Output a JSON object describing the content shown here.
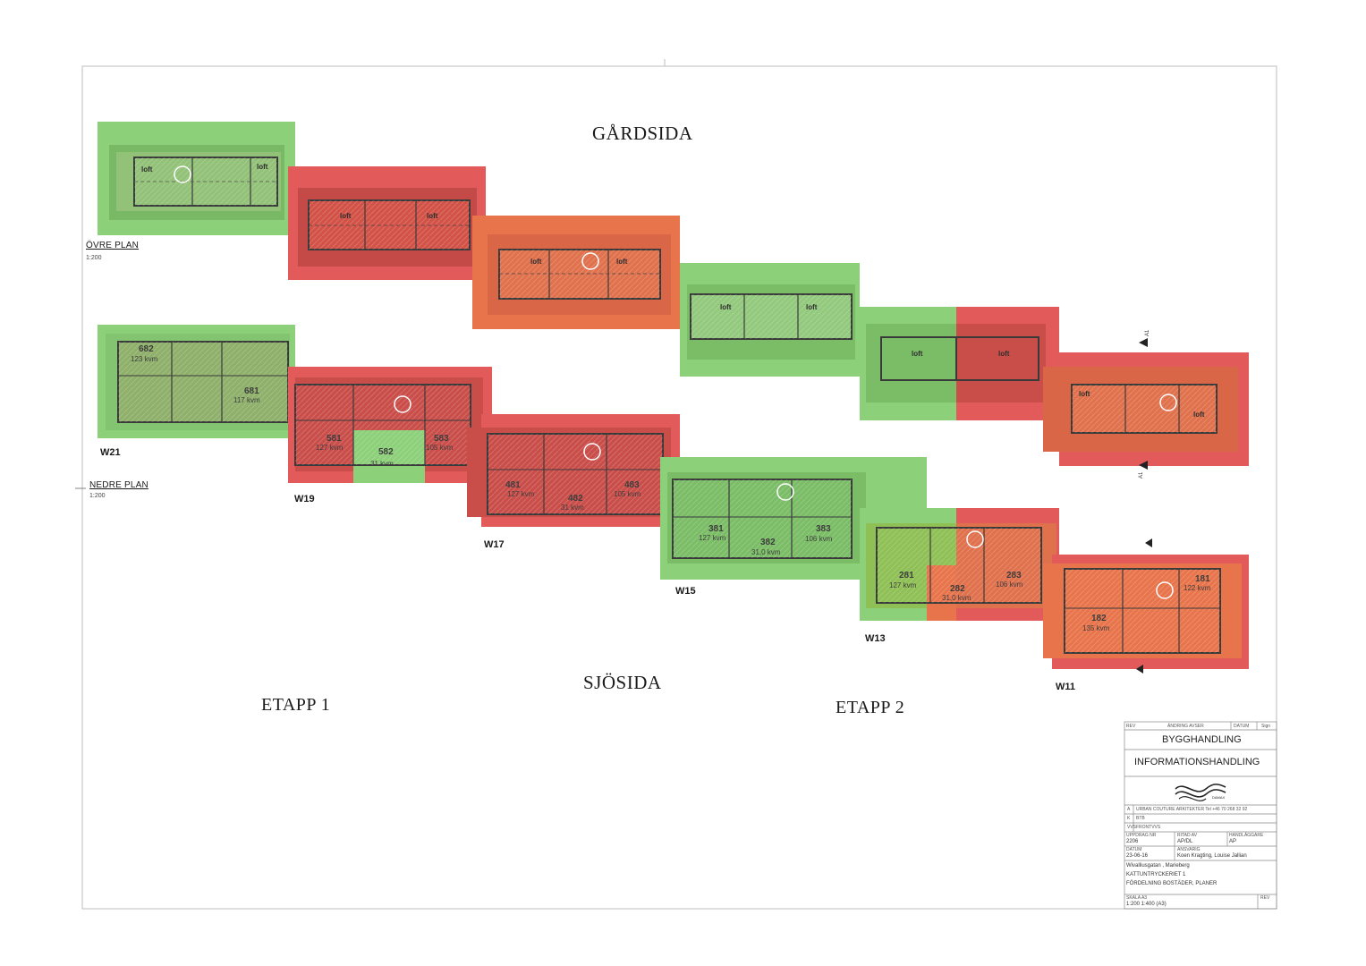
{
  "headings": {
    "courtyard_side": "GÅRDSIDA",
    "lake_side": "SJÖSIDA",
    "stage_1": "ETAPP 1",
    "stage_2": "ETAPP 2"
  },
  "plans": {
    "upper": {
      "title": "ÖVRE PLAN",
      "scale": "1:200"
    },
    "lower": {
      "title": "NEDRE PLAN",
      "scale": "1:200"
    }
  },
  "loft_label": "loft",
  "section_marks": {
    "a1": "A1"
  },
  "colors": {
    "green": "#8cd07a",
    "red": "#e25a5a",
    "orange": "#e8744c",
    "drawing_line": "#3a3a3a",
    "border": "#bdbdbd"
  },
  "buildings": [
    "W21",
    "W19",
    "W17",
    "W15",
    "W13",
    "W11"
  ],
  "units": [
    {
      "number": "682",
      "area": "123 kvm",
      "building": "W21",
      "status": "green"
    },
    {
      "number": "681",
      "area": "117 kvm",
      "building": "W21",
      "status": "green"
    },
    {
      "number": "581",
      "area": "127 kvm",
      "building": "W19",
      "status": "red"
    },
    {
      "number": "582",
      "area": "31 kvm",
      "building": "W19",
      "status": "green"
    },
    {
      "number": "583",
      "area": "105 kvm",
      "building": "W19",
      "status": "red"
    },
    {
      "number": "481",
      "area": "127 kvm",
      "building": "W17",
      "status": "red"
    },
    {
      "number": "482",
      "area": "31 kvm",
      "building": "W17",
      "status": "red"
    },
    {
      "number": "483",
      "area": "105 kvm",
      "building": "W17",
      "status": "red"
    },
    {
      "number": "381",
      "area": "127 kvm",
      "building": "W15",
      "status": "green"
    },
    {
      "number": "382",
      "area": "31,0 kvm",
      "building": "W15",
      "status": "green"
    },
    {
      "number": "383",
      "area": "106 kvm",
      "building": "W15",
      "status": "green"
    },
    {
      "number": "281",
      "area": "127 kvm",
      "building": "W13",
      "status": "green"
    },
    {
      "number": "282",
      "area": "31,0 kvm",
      "building": "W13",
      "status": "orange"
    },
    {
      "number": "283",
      "area": "106 kvm",
      "building": "W13",
      "status": "orange"
    },
    {
      "number": "181",
      "area": "122 kvm",
      "building": "W11",
      "status": "red"
    },
    {
      "number": "182",
      "area": "135 kvm",
      "building": "W11",
      "status": "orange"
    }
  ],
  "title_block": {
    "rev_header": "REV",
    "change_header": "ÄNDRING AVSER",
    "date_header": "DATUM",
    "sign_header": "Sign",
    "status": "BYGGHANDLING",
    "document_type": "INFORMATIONSHANDLING",
    "logo_text": "DAMAX",
    "disciplines": [
      {
        "code": "A",
        "text": "URBAN COUTURE ARKITEKTER Tel +46 70 268 32 92"
      },
      {
        "code": "K",
        "text": "BTB"
      },
      {
        "code": "VVS",
        "text": "FRONTVVS"
      }
    ],
    "labels": {
      "assignment_no": "UPPDRAG NR",
      "drawn_by": "RITAD AV",
      "responsible": "HANDLÄGGARE",
      "date": "DATUM",
      "responsible_person": "ANSVARIG",
      "scale": "SKALA A3",
      "rev": "REV"
    },
    "assignment_no": "2206",
    "drawn_by": "AP/DL",
    "responsible": "AP",
    "date": "23-06-16",
    "responsible_person": "Koen Kragting, Louise Jallian",
    "address": "Wivalliusgatan    , Marieberg",
    "property": "KATTUNTRYCKERIET 1",
    "drawing_title": "FÖRDELNING BOSTÄDER, PLANER",
    "scale": "1:200 1:400 (A3)"
  }
}
